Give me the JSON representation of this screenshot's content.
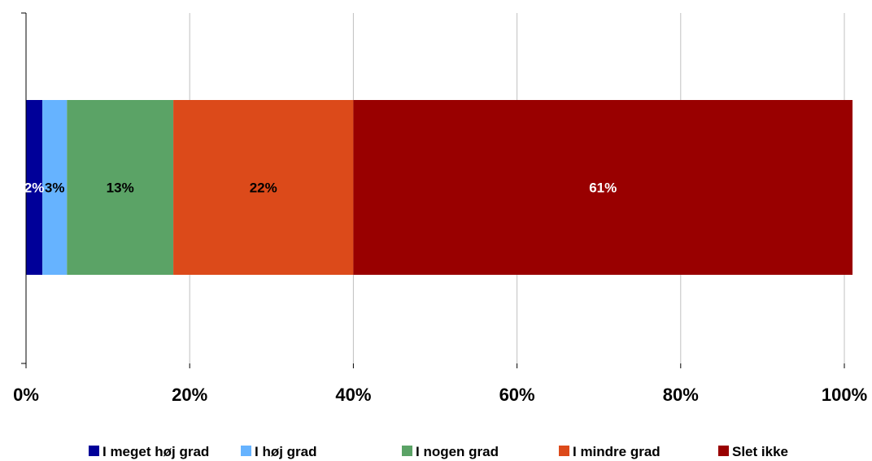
{
  "chart_data": {
    "type": "bar",
    "orientation": "horizontal",
    "stacked": true,
    "percent_axis": true,
    "xlim": [
      0,
      100
    ],
    "x_ticks": [
      "0%",
      "20%",
      "40%",
      "60%",
      "80%",
      "100%"
    ],
    "grid": "vertical",
    "legend_position": "bottom",
    "categories": [
      ""
    ],
    "series": [
      {
        "name": "I meget høj grad",
        "values": [
          2
        ],
        "label": "2%",
        "color": "#000099",
        "label_color": "#ffffff"
      },
      {
        "name": "I høj grad",
        "values": [
          3
        ],
        "label": "3%",
        "color": "#66b3ff",
        "label_color": "#000000"
      },
      {
        "name": "I nogen grad",
        "values": [
          13
        ],
        "label": "13%",
        "color": "#5ba366",
        "label_color": "#000000"
      },
      {
        "name": "I mindre grad",
        "values": [
          22
        ],
        "label": "22%",
        "color": "#dc4a1a",
        "label_color": "#000000"
      },
      {
        "name": "Slet ikke",
        "values": [
          61
        ],
        "label": "61%",
        "color": "#990000",
        "label_color": "#ffffff"
      }
    ]
  }
}
